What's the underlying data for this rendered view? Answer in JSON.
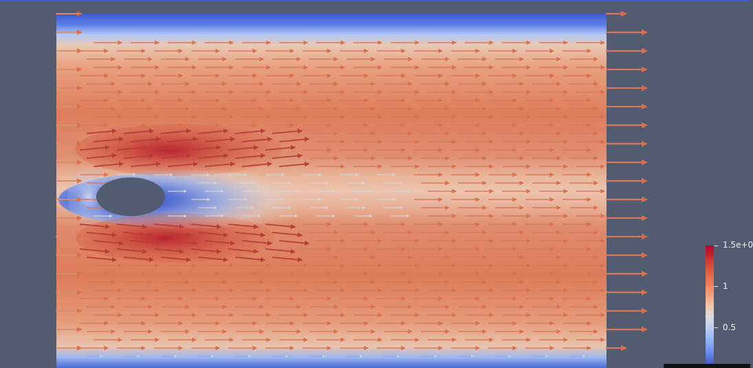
{
  "view": {
    "background_color": "#535b71",
    "accent_color": "#3c58d8"
  },
  "scalar_bar": {
    "max_label": "1.5e+0",
    "mid_label": "1",
    "low_label": "0.5",
    "colormap": [
      "#3b4cc0",
      "#6f92f3",
      "#a9c5fc",
      "#dddcdc",
      "#f2c0a2",
      "#ef8a62",
      "#d9523b",
      "#b40426"
    ]
  },
  "icons": {
    "glyphs": "arrow-glyph-icon",
    "obstacle": "ellipse-obstacle-icon"
  }
}
